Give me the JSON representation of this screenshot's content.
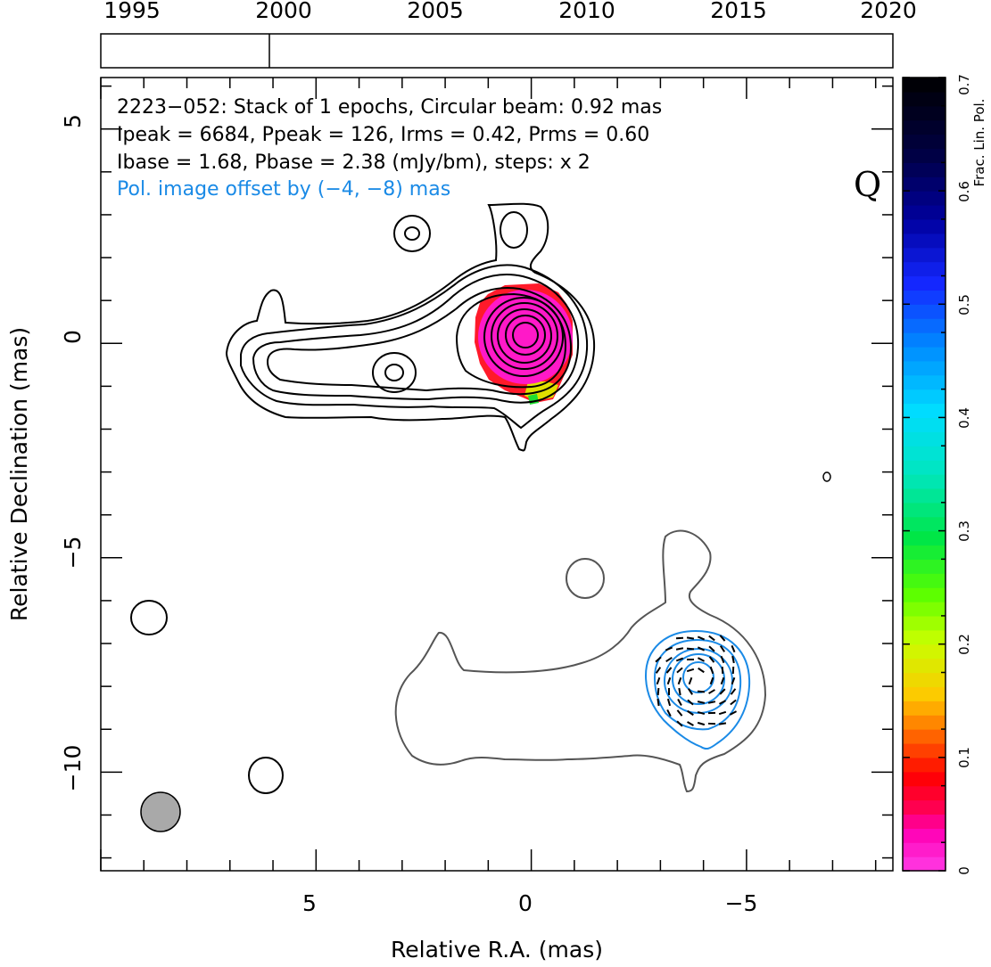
{
  "chart_data": {
    "type": "contour",
    "source": "2223-052",
    "annotation_lines": [
      "2223−052: Stack of 1 epochs, Circular beam: 0.92 mas",
      "Ipeak = 6684, Ppeak = 126, Irms = 0.42, Prms = 0.60",
      "Ibase = 1.68, Pbase = 2.38 (mJy/bm), steps: x 2"
    ],
    "offset_note": "Pol. image offset by (−4, −8) mas",
    "band_label": "Q",
    "xlabel": "Relative R.A. (mas)",
    "ylabel": "Relative Declination (mas)",
    "xlim": [
      10,
      -8.4
    ],
    "ylim": [
      -12.3,
      6.2
    ],
    "x_ticks": [
      5,
      0,
      -5
    ],
    "x_tick_labels": [
      "5",
      "0",
      "−5"
    ],
    "y_ticks": [
      5,
      0,
      -5,
      -10
    ],
    "y_tick_labels": [
      "5",
      "0",
      "−5",
      "−10"
    ],
    "timeline": {
      "years": [
        "1995",
        "2000",
        "2005",
        "2010",
        "2015",
        "2020"
      ],
      "range": [
        1993.3,
        2019.3
      ],
      "epochs": [
        1999.7
      ]
    },
    "colorbar": {
      "label": "Frac. Lin. Pol.",
      "range": [
        0,
        0.7
      ],
      "ticks": [
        "0",
        "0.1",
        "0.2",
        "0.3",
        "0.4",
        "0.5",
        "0.6",
        "0.7"
      ]
    },
    "beam": {
      "ra": 8.6,
      "dec": -11.0,
      "diameter_mas": 0.92
    },
    "core": {
      "ra": 0.0,
      "dec": 0.0
    },
    "polarization_center": {
      "ra": -4.0,
      "dec": -8.0
    },
    "colors": {
      "contour": "#000000",
      "pol_contour": "#1a8ae6",
      "offset_contour": "#555555",
      "beam_fill": "#a9a9a9",
      "fracpol_core": "#ff19c8"
    }
  }
}
